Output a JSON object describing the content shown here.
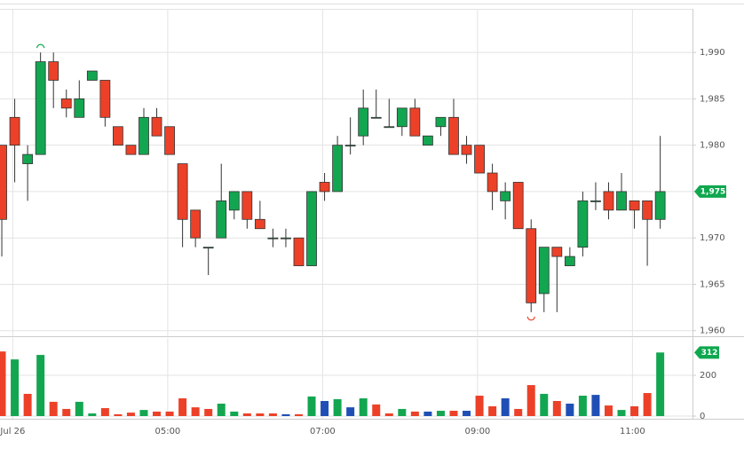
{
  "chart_data": [
    {
      "type": "candlestick",
      "open": [
        1980,
        1983,
        1978,
        1979,
        1989,
        1985,
        1983,
        1987,
        1987,
        1982,
        1980,
        1979,
        1983,
        1982,
        1978,
        1973,
        1969,
        1970,
        1973,
        1975,
        1972,
        1970,
        1970,
        1970,
        1967,
        1976,
        1975,
        1980,
        1981,
        1983,
        1982,
        1982,
        1984,
        1980,
        1982,
        1983,
        1980,
        1980,
        1977,
        1974,
        1976,
        1971,
        1964,
        1969,
        1967,
        1969,
        1974,
        1975,
        1973,
        1974,
        1974,
        1972
      ],
      "high": [
        1980,
        1985,
        1980,
        1990,
        1990,
        1986,
        1987,
        1988,
        1987,
        1982,
        1980,
        1984,
        1984,
        1982,
        1978,
        1973,
        1969,
        1978,
        1975,
        1975,
        1974,
        1971,
        1971,
        1970,
        1975,
        1977,
        1981,
        1983,
        1986,
        1986,
        1985,
        1984,
        1985,
        1981,
        1983,
        1985,
        1981,
        1980,
        1978,
        1976,
        1976,
        1972,
        1969,
        1969,
        1969,
        1975,
        1976,
        1976,
        1977,
        1974,
        1974,
        1981
      ],
      "low": [
        1968,
        1976,
        1974,
        1979,
        1984,
        1983,
        1983,
        1987,
        1982,
        1980,
        1979,
        1979,
        1981,
        1979,
        1969,
        1969,
        1966,
        1970,
        1972,
        1971,
        1971,
        1969,
        1969,
        1967,
        1967,
        1974,
        1975,
        1979,
        1980,
        1983,
        1982,
        1981,
        1981,
        1980,
        1981,
        1979,
        1978,
        1977,
        1973,
        1972,
        1971,
        1962,
        1962,
        1962,
        1967,
        1968,
        1973,
        1972,
        1973,
        1971,
        1967,
        1971
      ],
      "close": [
        1972,
        1980,
        1979,
        1989,
        1987,
        1984,
        1985,
        1988,
        1983,
        1980,
        1979,
        1983,
        1981,
        1979,
        1972,
        1970,
        1969,
        1974,
        1975,
        1972,
        1971,
        1970,
        1970,
        1967,
        1975,
        1975,
        1980,
        1980,
        1984,
        1983,
        1982,
        1984,
        1981,
        1981,
        1983,
        1979,
        1979,
        1977,
        1975,
        1975,
        1971,
        1963,
        1969,
        1968,
        1968,
        1974,
        1974,
        1973,
        1975,
        1973,
        1972,
        1975
      ],
      "up_color": "#13a651",
      "down_color": "#ec4128",
      "last_label": "1,975",
      "last_color": "#0fa74f",
      "xlim": [
        -0.14,
        53.5
      ],
      "xticks": [
        {
          "value": 0.85,
          "label": "Jul 26"
        },
        {
          "value": 12.85,
          "label": "05:00"
        },
        {
          "value": 24.85,
          "label": "07:00"
        },
        {
          "value": 36.85,
          "label": "09:00"
        },
        {
          "value": 48.85,
          "label": "11:00"
        }
      ],
      "ylim": [
        1959.4,
        1994.7
      ],
      "yticks": [
        {
          "value": 1960,
          "label": "1,960"
        },
        {
          "value": 1965,
          "label": "1,965"
        },
        {
          "value": 1970,
          "label": "1,970"
        },
        {
          "value": 1975,
          "label": "1,975"
        },
        {
          "value": 1980,
          "label": "1,980"
        },
        {
          "value": 1985,
          "label": "1,985"
        },
        {
          "value": 1990,
          "label": "1,990"
        }
      ],
      "grid": true
    },
    {
      "type": "volume",
      "values": [
        317,
        278,
        109,
        300,
        70,
        35,
        70,
        13,
        39,
        9,
        17,
        30,
        22,
        22,
        87,
        43,
        35,
        61,
        22,
        13,
        13,
        13,
        9,
        9,
        96,
        74,
        83,
        43,
        87,
        57,
        13,
        35,
        22,
        22,
        26,
        26,
        26,
        100,
        48,
        87,
        35,
        152,
        109,
        74,
        61,
        100,
        104,
        52,
        30,
        48,
        113,
        312
      ],
      "colors": [
        "#ec4128",
        "#13a651",
        "#ec4128",
        "#13a651",
        "#ec4128",
        "#ec4128",
        "#13a651",
        "#13a651",
        "#ec4128",
        "#ec4128",
        "#ec4128",
        "#13a651",
        "#ec4128",
        "#ec4128",
        "#ec4128",
        "#ec4128",
        "#ec4128",
        "#13a651",
        "#13a651",
        "#ec4128",
        "#ec4128",
        "#ec4128",
        "#1f4fb5",
        "#ec4128",
        "#13a651",
        "#1f4fb5",
        "#13a651",
        "#1f4fb5",
        "#13a651",
        "#ec4128",
        "#ec4128",
        "#13a651",
        "#ec4128",
        "#1f4fb5",
        "#13a651",
        "#ec4128",
        "#1f4fb5",
        "#ec4128",
        "#ec4128",
        "#1f4fb5",
        "#ec4128",
        "#ec4128",
        "#13a651",
        "#ec4128",
        "#1f4fb5",
        "#13a651",
        "#1f4fb5",
        "#ec4128",
        "#13a651",
        "#ec4128",
        "#ec4128",
        "#13a651"
      ],
      "last_color": "#0fa74f",
      "ylim": [
        0,
        383
      ],
      "yticks": [
        0,
        200
      ],
      "grid": true
    }
  ]
}
